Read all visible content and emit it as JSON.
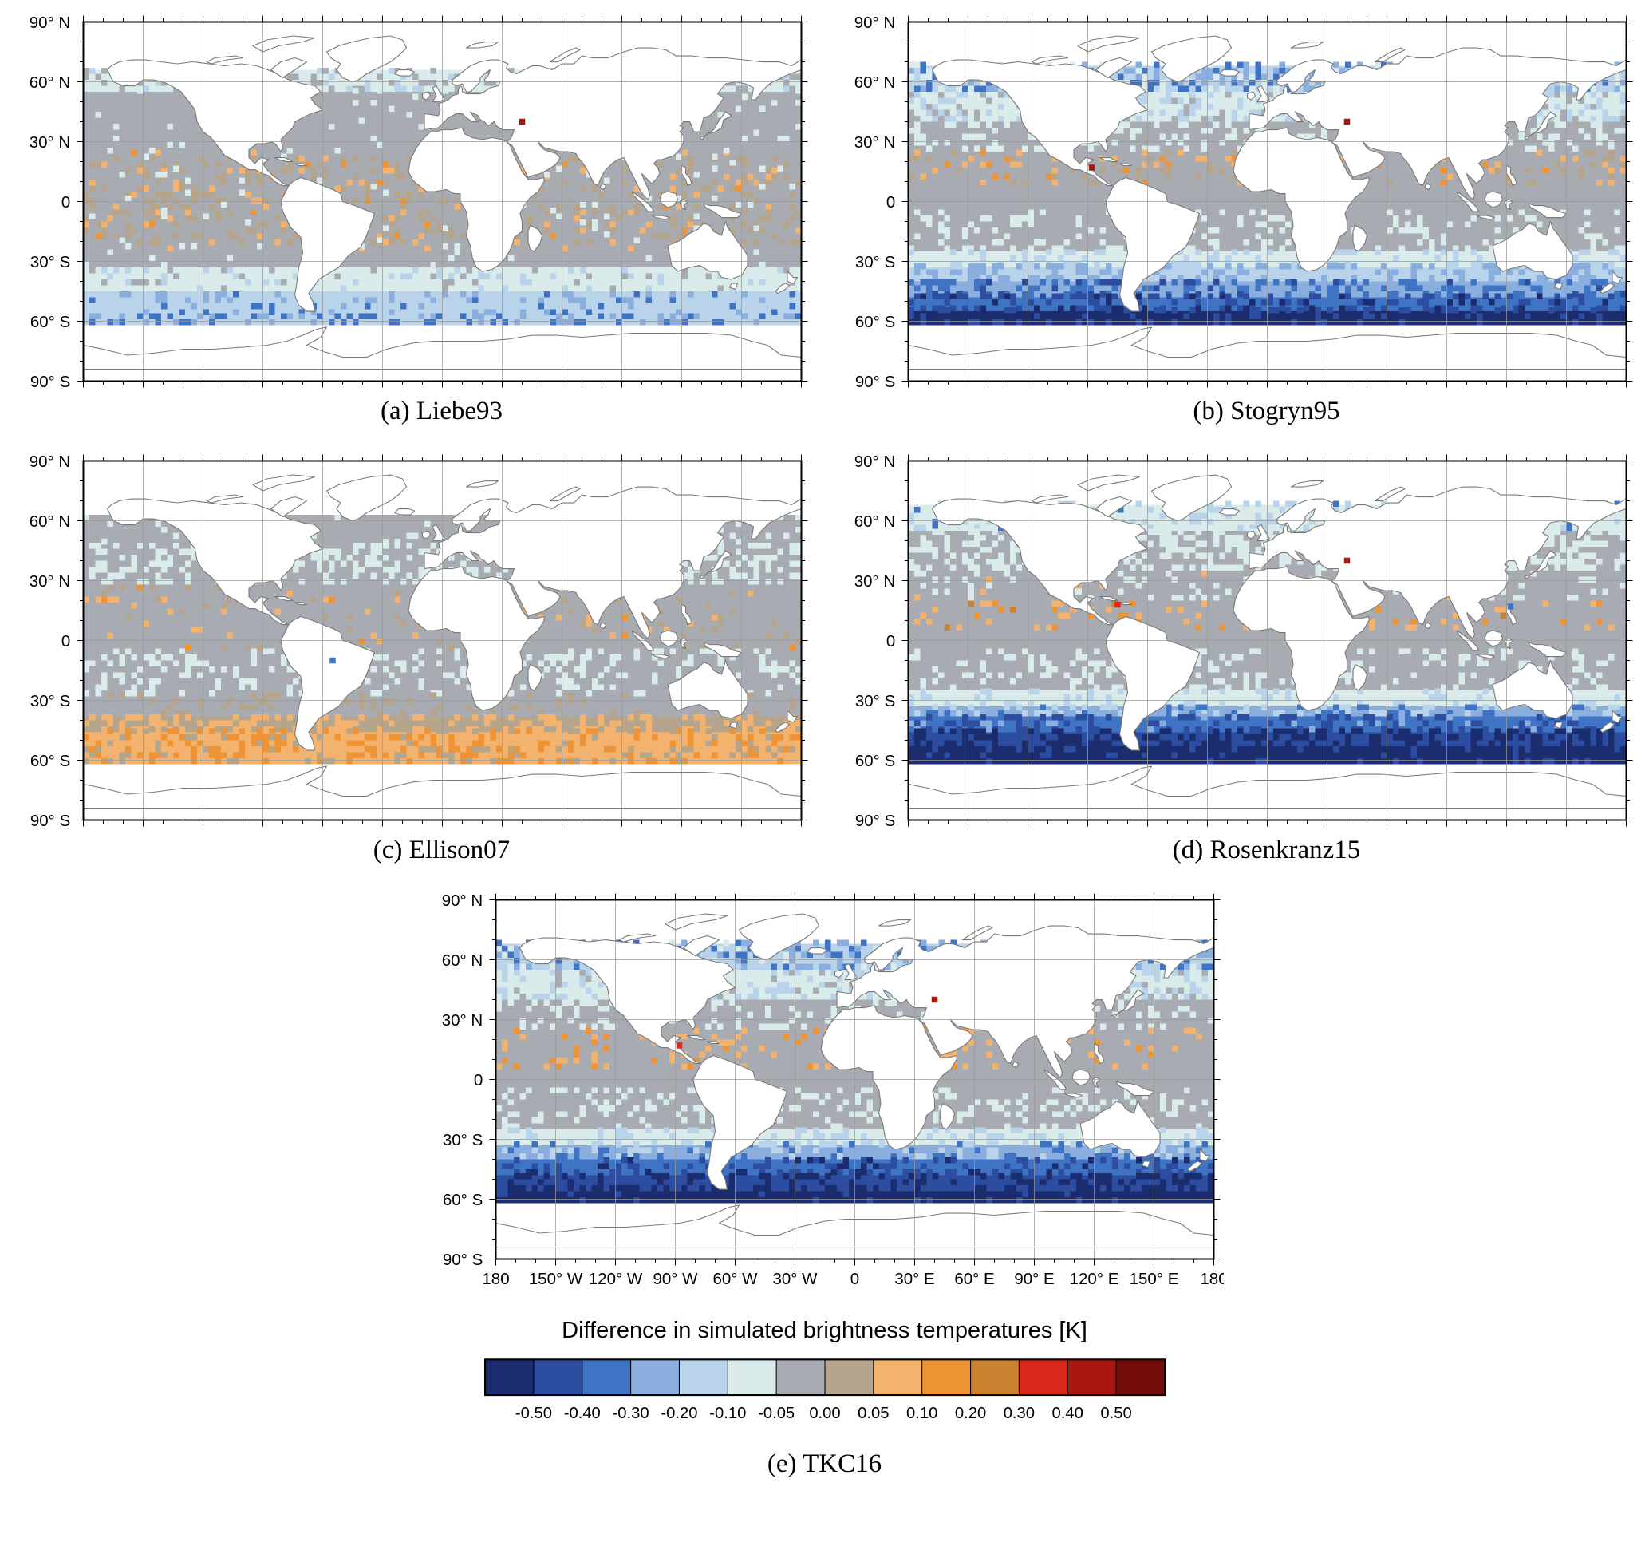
{
  "figure": {
    "panels": [
      {
        "id": "a",
        "model": "Liebe93",
        "caption": "(a) Liebe93"
      },
      {
        "id": "b",
        "model": "Stogryn95",
        "caption": "(b) Stogryn95"
      },
      {
        "id": "c",
        "model": "Ellison07",
        "caption": "(c) Ellison07"
      },
      {
        "id": "d",
        "model": "Rosenkranz15",
        "caption": "(d) Rosenkranz15"
      },
      {
        "id": "e",
        "model": "TKC16",
        "caption": "(e) TKC16"
      }
    ],
    "lat_ticks": [
      {
        "label": "90° N",
        "lat": 90
      },
      {
        "label": "60° N",
        "lat": 60
      },
      {
        "label": "30° N",
        "lat": 30
      },
      {
        "label": "0",
        "lat": 0
      },
      {
        "label": "30° S",
        "lat": -30
      },
      {
        "label": "60° S",
        "lat": -60
      },
      {
        "label": "90° S",
        "lat": -90
      }
    ],
    "lon_ticks": [
      {
        "label": "180",
        "lon": -180
      },
      {
        "label": "150° W",
        "lon": -150
      },
      {
        "label": "120° W",
        "lon": -120
      },
      {
        "label": "90° W",
        "lon": -90
      },
      {
        "label": "60° W",
        "lon": -60
      },
      {
        "label": "30° W",
        "lon": -30
      },
      {
        "label": "0",
        "lon": 0
      },
      {
        "label": "30° E",
        "lon": 30
      },
      {
        "label": "60° E",
        "lon": 60
      },
      {
        "label": "90° E",
        "lon": 90
      },
      {
        "label": "120° E",
        "lon": 120
      },
      {
        "label": "150° E",
        "lon": 150
      },
      {
        "label": "180",
        "lon": 180
      }
    ],
    "colorbar": {
      "title": "Difference in simulated brightness temperatures [K]",
      "units": "K",
      "tick_labels": [
        "-0.50",
        "-0.40",
        "-0.30",
        "-0.20",
        "-0.10",
        "-0.05",
        "0.00",
        "0.05",
        "0.10",
        "0.20",
        "0.30",
        "0.40",
        "0.50"
      ],
      "thresholds": [
        -0.5,
        -0.4,
        -0.3,
        -0.2,
        -0.1,
        -0.05,
        0,
        0.05,
        0.1,
        0.2,
        0.3,
        0.4,
        0.5
      ],
      "segment_colors": [
        "#1b2c6f",
        "#2d4da0",
        "#3f74c5",
        "#8aaedd",
        "#b8d3ea",
        "#d9eceb",
        "#a9abb2",
        "#b4a58c",
        "#f3b26e",
        "#ee9434",
        "#c98230",
        "#d8281c",
        "#a91810",
        "#720d0a"
      ]
    },
    "map_style": {
      "coastline_color": "#7a7a7a",
      "grid_color": "#9a9a9a",
      "frame_color": "#000000",
      "land_fill": "#ffffff"
    }
  },
  "chart_data": [
    {
      "type": "heatmap",
      "panel": "a",
      "model": "Liebe93",
      "caption": "(a) Liebe93",
      "units": "K",
      "x": "longitude",
      "y": "latitude",
      "lon_range": [
        -180,
        180
      ],
      "lat_range": [
        -62,
        66
      ],
      "bands": [
        {
          "lat": [
            55,
            66
          ],
          "value": -0.075,
          "speckles": [
            {
              "value": -0.025,
              "density": 0.25
            },
            {
              "value": -0.15,
              "density": 0.1
            }
          ]
        },
        {
          "lat": [
            -33,
            55
          ],
          "value": -0.025,
          "speckles": [
            {
              "value": 0.025,
              "density": 0.2,
              "lat": [
                -22,
                22
              ]
            },
            {
              "value": 0.075,
              "density": 0.05,
              "lat": [
                -25,
                25
              ]
            },
            {
              "value": 0.15,
              "density": 0.012,
              "lat": [
                -25,
                25
              ]
            },
            {
              "value": -0.075,
              "density": 0.05
            }
          ]
        },
        {
          "lat": [
            -45,
            -33
          ],
          "value": -0.075,
          "speckles": [
            {
              "value": -0.15,
              "density": 0.12
            },
            {
              "value": -0.025,
              "density": 0.08
            }
          ]
        },
        {
          "lat": [
            -57,
            -45
          ],
          "value": -0.15,
          "speckles": [
            {
              "value": -0.25,
              "density": 0.12
            },
            {
              "value": -0.35,
              "density": 0.04
            }
          ]
        },
        {
          "lat": [
            -62,
            -57
          ],
          "value": -0.15,
          "speckles": [
            {
              "value": -0.35,
              "density": 0.22
            },
            {
              "value": -0.25,
              "density": 0.18
            }
          ]
        }
      ],
      "hotspots": [
        {
          "lon": 40,
          "lat": 40,
          "value": 0.45
        }
      ]
    },
    {
      "type": "heatmap",
      "panel": "b",
      "model": "Stogryn95",
      "caption": "(b) Stogryn95",
      "units": "K",
      "x": "longitude",
      "y": "latitude",
      "lon_range": [
        -180,
        180
      ],
      "lat_range": [
        -62,
        68
      ],
      "bands": [
        {
          "lat": [
            55,
            68
          ],
          "value": -0.15,
          "speckles": [
            {
              "value": -0.35,
              "density": 0.3
            },
            {
              "value": -0.25,
              "density": 0.22
            },
            {
              "value": -0.075,
              "density": 0.12
            }
          ]
        },
        {
          "lat": [
            40,
            55
          ],
          "value": -0.075,
          "speckles": [
            {
              "value": -0.15,
              "density": 0.28
            },
            {
              "value": -0.025,
              "density": 0.15
            }
          ]
        },
        {
          "lat": [
            25,
            40
          ],
          "value": -0.025,
          "speckles": [
            {
              "value": -0.075,
              "density": 0.3
            }
          ]
        },
        {
          "lat": [
            8,
            25
          ],
          "value": -0.025,
          "speckles": [
            {
              "value": 0.075,
              "density": 0.09
            },
            {
              "value": 0.15,
              "density": 0.05
            },
            {
              "value": 0.025,
              "density": 0.08
            }
          ]
        },
        {
          "lat": [
            -25,
            8
          ],
          "value": -0.025,
          "speckles": [
            {
              "value": -0.075,
              "density": 0.22,
              "lat": [
                -25,
                -4
              ]
            }
          ]
        },
        {
          "lat": [
            -33,
            -25
          ],
          "value": -0.075,
          "speckles": [
            {
              "value": -0.15,
              "density": 0.25
            }
          ]
        },
        {
          "lat": [
            -40,
            -33
          ],
          "value": -0.15,
          "speckles": [
            {
              "value": -0.25,
              "density": 0.3
            }
          ]
        },
        {
          "lat": [
            -48,
            -40
          ],
          "value": -0.25,
          "speckles": [
            {
              "value": -0.35,
              "density": 0.35
            },
            {
              "value": -0.45,
              "density": 0.08
            }
          ]
        },
        {
          "lat": [
            -55,
            -48
          ],
          "value": -0.35,
          "speckles": [
            {
              "value": -0.45,
              "density": 0.35
            },
            {
              "value": -0.55,
              "density": 0.12
            }
          ]
        },
        {
          "lat": [
            -62,
            -55
          ],
          "value": -0.55,
          "speckles": [
            {
              "value": -0.45,
              "density": 0.2
            }
          ]
        }
      ],
      "hotspots": [
        {
          "lon": 40,
          "lat": 40,
          "value": 0.45
        },
        {
          "lon": -88,
          "lat": 17,
          "value": 0.45
        }
      ]
    },
    {
      "type": "heatmap",
      "panel": "c",
      "model": "Ellison07",
      "caption": "(c) Ellison07",
      "units": "K",
      "x": "longitude",
      "y": "latitude",
      "lon_range": [
        -180,
        180
      ],
      "lat_range": [
        -62,
        63
      ],
      "bands": [
        {
          "lat": [
            48,
            63
          ],
          "value": -0.025,
          "speckles": [
            {
              "value": -0.075,
              "density": 0.12
            }
          ]
        },
        {
          "lat": [
            28,
            48
          ],
          "value": -0.025,
          "speckles": [
            {
              "value": -0.075,
              "density": 0.38
            }
          ]
        },
        {
          "lat": [
            -5,
            28
          ],
          "value": -0.025,
          "speckles": [
            {
              "value": 0.025,
              "density": 0.05
            },
            {
              "value": 0.075,
              "density": 0.03
            },
            {
              "value": 0.15,
              "density": 0.012
            }
          ]
        },
        {
          "lat": [
            -28,
            -5
          ],
          "value": -0.025,
          "speckles": [
            {
              "value": -0.075,
              "density": 0.28
            }
          ]
        },
        {
          "lat": [
            -38,
            -28
          ],
          "value": -0.025,
          "speckles": [
            {
              "value": 0.025,
              "density": 0.15
            }
          ]
        },
        {
          "lat": [
            -46,
            -38
          ],
          "value": 0.025,
          "speckles": [
            {
              "value": 0.075,
              "density": 0.4
            }
          ]
        },
        {
          "lat": [
            -62,
            -46
          ],
          "value": 0.075,
          "speckles": [
            {
              "value": 0.15,
              "density": 0.25
            },
            {
              "value": 0.025,
              "density": 0.12
            }
          ]
        }
      ],
      "hotspots": [
        {
          "lon": -55,
          "lat": -10,
          "value": -0.35
        }
      ]
    },
    {
      "type": "heatmap",
      "panel": "d",
      "model": "Rosenkranz15",
      "caption": "(d) Rosenkranz15",
      "units": "K",
      "x": "longitude",
      "y": "latitude",
      "lon_range": [
        -180,
        180
      ],
      "lat_range": [
        -62,
        68
      ],
      "bands": [
        {
          "lat": [
            55,
            68
          ],
          "value": -0.075,
          "speckles": [
            {
              "value": -0.15,
              "density": 0.22
            },
            {
              "value": -0.35,
              "density": 0.05
            }
          ]
        },
        {
          "lat": [
            35,
            55
          ],
          "value": -0.025,
          "speckles": [
            {
              "value": -0.075,
              "density": 0.45
            }
          ]
        },
        {
          "lat": [
            20,
            35
          ],
          "value": -0.025,
          "speckles": [
            {
              "value": -0.075,
              "density": 0.12
            },
            {
              "value": 0.075,
              "density": 0.02
            }
          ]
        },
        {
          "lat": [
            5,
            20
          ],
          "value": -0.025,
          "speckles": [
            {
              "value": 0.075,
              "density": 0.1
            },
            {
              "value": 0.15,
              "density": 0.06
            },
            {
              "value": 0.25,
              "density": 0.015
            }
          ]
        },
        {
          "lat": [
            -25,
            5
          ],
          "value": -0.025,
          "speckles": [
            {
              "value": -0.075,
              "density": 0.22,
              "lat": [
                -25,
                -4
              ]
            }
          ]
        },
        {
          "lat": [
            -33,
            -25
          ],
          "value": -0.075,
          "speckles": [
            {
              "value": -0.15,
              "density": 0.22
            }
          ]
        },
        {
          "lat": [
            -38,
            -33
          ],
          "value": -0.25,
          "speckles": [
            {
              "value": -0.15,
              "density": 0.3
            },
            {
              "value": -0.35,
              "density": 0.15
            }
          ]
        },
        {
          "lat": [
            -46,
            -38
          ],
          "value": -0.35,
          "speckles": [
            {
              "value": -0.45,
              "density": 0.3
            },
            {
              "value": -0.25,
              "density": 0.1
            }
          ]
        },
        {
          "lat": [
            -53,
            -46
          ],
          "value": -0.45,
          "speckles": [
            {
              "value": -0.55,
              "density": 0.4
            }
          ]
        },
        {
          "lat": [
            -62,
            -53
          ],
          "value": -0.55,
          "speckles": [
            {
              "value": -0.45,
              "density": 0.12
            }
          ]
        }
      ],
      "hotspots": [
        {
          "lon": 40,
          "lat": 40,
          "value": 0.45
        },
        {
          "lon": -75,
          "lat": 18,
          "value": 0.35
        },
        {
          "lon": 122,
          "lat": 17,
          "value": -0.35
        }
      ]
    },
    {
      "type": "heatmap",
      "panel": "e",
      "model": "TKC16",
      "caption": "(e) TKC16",
      "units": "K",
      "x": "longitude",
      "y": "latitude",
      "lon_range": [
        -180,
        180
      ],
      "lat_range": [
        -62,
        68
      ],
      "bands": [
        {
          "lat": [
            55,
            68
          ],
          "value": -0.15,
          "speckles": [
            {
              "value": -0.35,
              "density": 0.3
            },
            {
              "value": -0.25,
              "density": 0.2
            },
            {
              "value": -0.075,
              "density": 0.1
            }
          ]
        },
        {
          "lat": [
            40,
            55
          ],
          "value": -0.075,
          "speckles": [
            {
              "value": -0.15,
              "density": 0.32
            },
            {
              "value": -0.025,
              "density": 0.1
            }
          ]
        },
        {
          "lat": [
            25,
            40
          ],
          "value": -0.025,
          "speckles": [
            {
              "value": -0.075,
              "density": 0.28
            }
          ]
        },
        {
          "lat": [
            5,
            25
          ],
          "value": -0.025,
          "speckles": [
            {
              "value": 0.075,
              "density": 0.08
            },
            {
              "value": 0.15,
              "density": 0.04
            }
          ]
        },
        {
          "lat": [
            -25,
            5
          ],
          "value": -0.025,
          "speckles": [
            {
              "value": -0.075,
              "density": 0.22,
              "lat": [
                -25,
                -6
              ]
            }
          ]
        },
        {
          "lat": [
            -33,
            -25
          ],
          "value": -0.075,
          "speckles": [
            {
              "value": -0.15,
              "density": 0.28
            }
          ]
        },
        {
          "lat": [
            -40,
            -33
          ],
          "value": -0.25,
          "speckles": [
            {
              "value": -0.15,
              "density": 0.22
            },
            {
              "value": -0.35,
              "density": 0.15
            }
          ]
        },
        {
          "lat": [
            -48,
            -40
          ],
          "value": -0.35,
          "speckles": [
            {
              "value": -0.45,
              "density": 0.3
            },
            {
              "value": -0.55,
              "density": 0.06
            }
          ]
        },
        {
          "lat": [
            -56,
            -48
          ],
          "value": -0.45,
          "speckles": [
            {
              "value": -0.55,
              "density": 0.38
            }
          ]
        },
        {
          "lat": [
            -62,
            -56
          ],
          "value": -0.55,
          "speckles": [
            {
              "value": -0.45,
              "density": 0.1
            }
          ]
        }
      ],
      "hotspots": [
        {
          "lon": 40,
          "lat": 40,
          "value": 0.45
        },
        {
          "lon": -88,
          "lat": 17,
          "value": 0.35
        }
      ]
    }
  ]
}
